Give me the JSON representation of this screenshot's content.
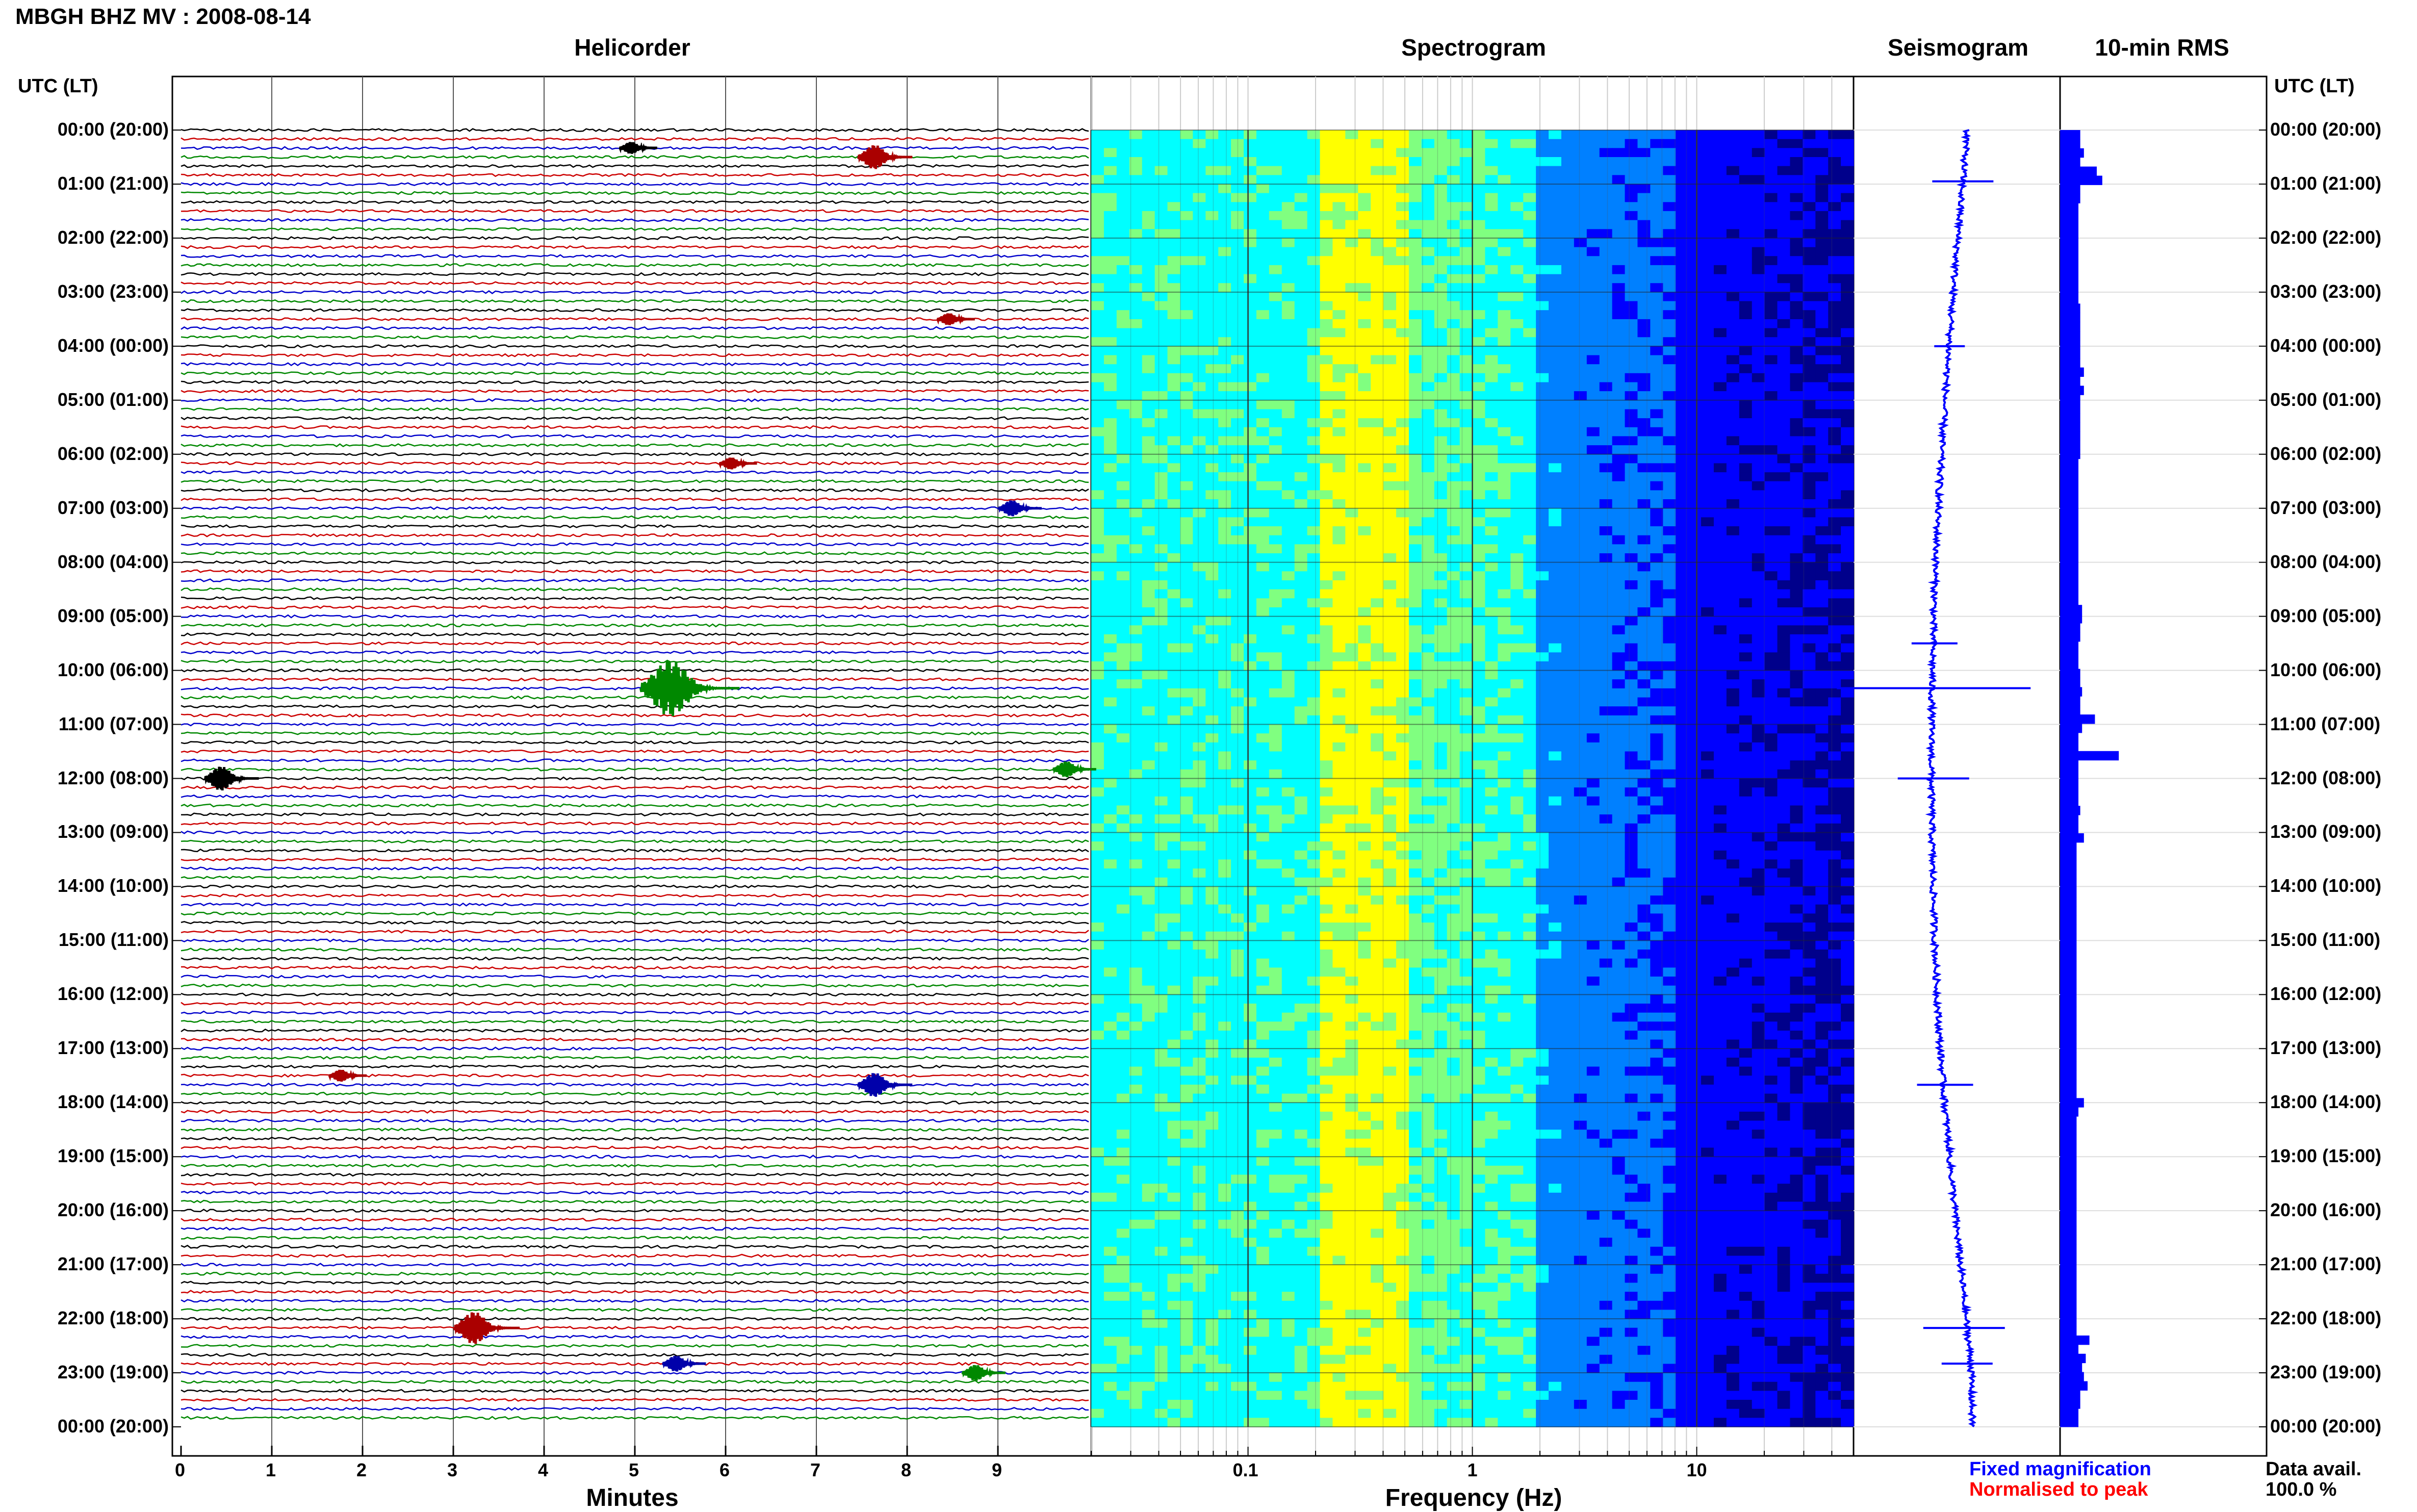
{
  "header": {
    "title": "MBGH BHZ MV : 2008-08-14",
    "left_axis_title": "UTC (LT)",
    "right_axis_title": "UTC (LT)"
  },
  "panels": {
    "helicorder": "Helicorder",
    "spectrogram": "Spectrogram",
    "seismogram": "Seismogram",
    "rms": "10-min RMS"
  },
  "footer": {
    "minutes_label": "Minutes",
    "frequency_label": "Frequency (Hz)",
    "fixed_magnification": "Fixed magnification",
    "normalised_to_peak": "Normalised to peak",
    "data_avail_label": "Data avail.",
    "data_avail_value": "100.0 %"
  },
  "hour_labels": [
    "00:00 (20:00)",
    "01:00 (21:00)",
    "02:00 (22:00)",
    "03:00 (23:00)",
    "04:00 (00:00)",
    "05:00 (01:00)",
    "06:00 (02:00)",
    "07:00 (03:00)",
    "08:00 (04:00)",
    "09:00 (05:00)",
    "10:00 (06:00)",
    "11:00 (07:00)",
    "12:00 (08:00)",
    "13:00 (09:00)",
    "14:00 (10:00)",
    "15:00 (11:00)",
    "16:00 (12:00)",
    "17:00 (13:00)",
    "18:00 (14:00)",
    "19:00 (15:00)",
    "20:00 (16:00)",
    "21:00 (17:00)",
    "22:00 (18:00)",
    "23:00 (19:00)",
    "00:00 (20:00)"
  ],
  "chart_data": [
    {
      "type": "line",
      "panel": "helicorder",
      "title": "Helicorder",
      "xlabel": "Minutes",
      "x_ticks": [
        0,
        1,
        2,
        3,
        4,
        5,
        6,
        7,
        8,
        9
      ],
      "xlim": [
        0,
        10
      ],
      "trace_count": 144,
      "trace_colors": [
        "#000000",
        "#cc0000",
        "#0000cc",
        "#008800"
      ],
      "events": [
        {
          "hour": 0.5,
          "minute": 7.7,
          "color": "#aa0000",
          "amp": 3
        },
        {
          "hour": 0.33,
          "minute": 5.0,
          "color": "#000000",
          "amp": 1.5
        },
        {
          "hour": 3.5,
          "minute": 8.5,
          "color": "#aa0000",
          "amp": 1.5
        },
        {
          "hour": 6.17,
          "minute": 6.1,
          "color": "#aa0000",
          "amp": 1.5
        },
        {
          "hour": 7.0,
          "minute": 9.2,
          "color": "#0000aa",
          "amp": 2
        },
        {
          "hour": 10.33,
          "minute": 5.5,
          "color": "#008800",
          "amp": 7
        },
        {
          "hour": 12.0,
          "minute": 0.5,
          "color": "#000000",
          "amp": 3
        },
        {
          "hour": 11.83,
          "minute": 9.8,
          "color": "#008800",
          "amp": 2
        },
        {
          "hour": 17.67,
          "minute": 7.7,
          "color": "#0000aa",
          "amp": 3
        },
        {
          "hour": 17.5,
          "minute": 1.8,
          "color": "#aa0000",
          "amp": 1.5
        },
        {
          "hour": 22.17,
          "minute": 3.3,
          "color": "#aa0000",
          "amp": 4
        },
        {
          "hour": 22.83,
          "minute": 5.5,
          "color": "#0000aa",
          "amp": 2
        },
        {
          "hour": 23.0,
          "minute": 8.8,
          "color": "#008800",
          "amp": 2
        }
      ]
    },
    {
      "type": "heatmap",
      "panel": "spectrogram",
      "title": "Spectrogram",
      "xlabel": "Frequency (Hz)",
      "xscale": "log",
      "xlim": [
        0.02,
        50
      ],
      "x_tick_labels": [
        "0.1",
        "1",
        "10"
      ],
      "colormap": [
        "#00008b",
        "#0000ff",
        "#0080ff",
        "#00ffff",
        "#80ff80",
        "#ffff00"
      ]
    },
    {
      "type": "line",
      "panel": "seismogram",
      "title": "Seismogram",
      "color": "#0000ff"
    },
    {
      "type": "bar",
      "panel": "rms",
      "title": "10-min RMS",
      "color": "#0000ff",
      "orientation": "horizontal",
      "values": [
        11,
        11,
        13,
        11,
        20,
        23,
        11,
        11,
        10,
        10,
        10,
        10,
        10,
        10,
        10,
        10,
        10,
        10,
        10,
        11,
        11,
        11,
        11,
        11,
        11,
        11,
        13,
        11,
        13,
        11,
        11,
        11,
        11,
        11,
        11,
        11,
        10,
        10,
        10,
        10,
        10,
        10,
        10,
        10,
        10,
        10,
        10,
        10,
        10,
        10,
        10,
        10,
        12,
        12,
        11,
        11,
        10,
        10,
        10,
        11,
        11,
        12,
        11,
        11,
        19,
        12,
        10,
        10,
        32,
        10,
        10,
        10,
        10,
        10,
        11,
        10,
        10,
        13,
        9,
        9,
        9,
        9,
        9,
        9,
        9,
        9,
        9,
        9,
        9,
        9,
        9,
        9,
        9,
        9,
        9,
        9,
        9,
        9,
        9,
        9,
        9,
        9,
        9,
        9,
        9,
        9,
        13,
        10,
        9,
        9,
        9,
        9,
        9,
        9,
        9,
        9,
        9,
        9,
        9,
        9,
        9,
        9,
        9,
        9,
        9,
        9,
        9,
        9,
        9,
        9,
        9,
        9,
        16,
        10,
        14,
        12,
        13,
        15,
        11,
        11,
        10,
        10
      ]
    }
  ]
}
